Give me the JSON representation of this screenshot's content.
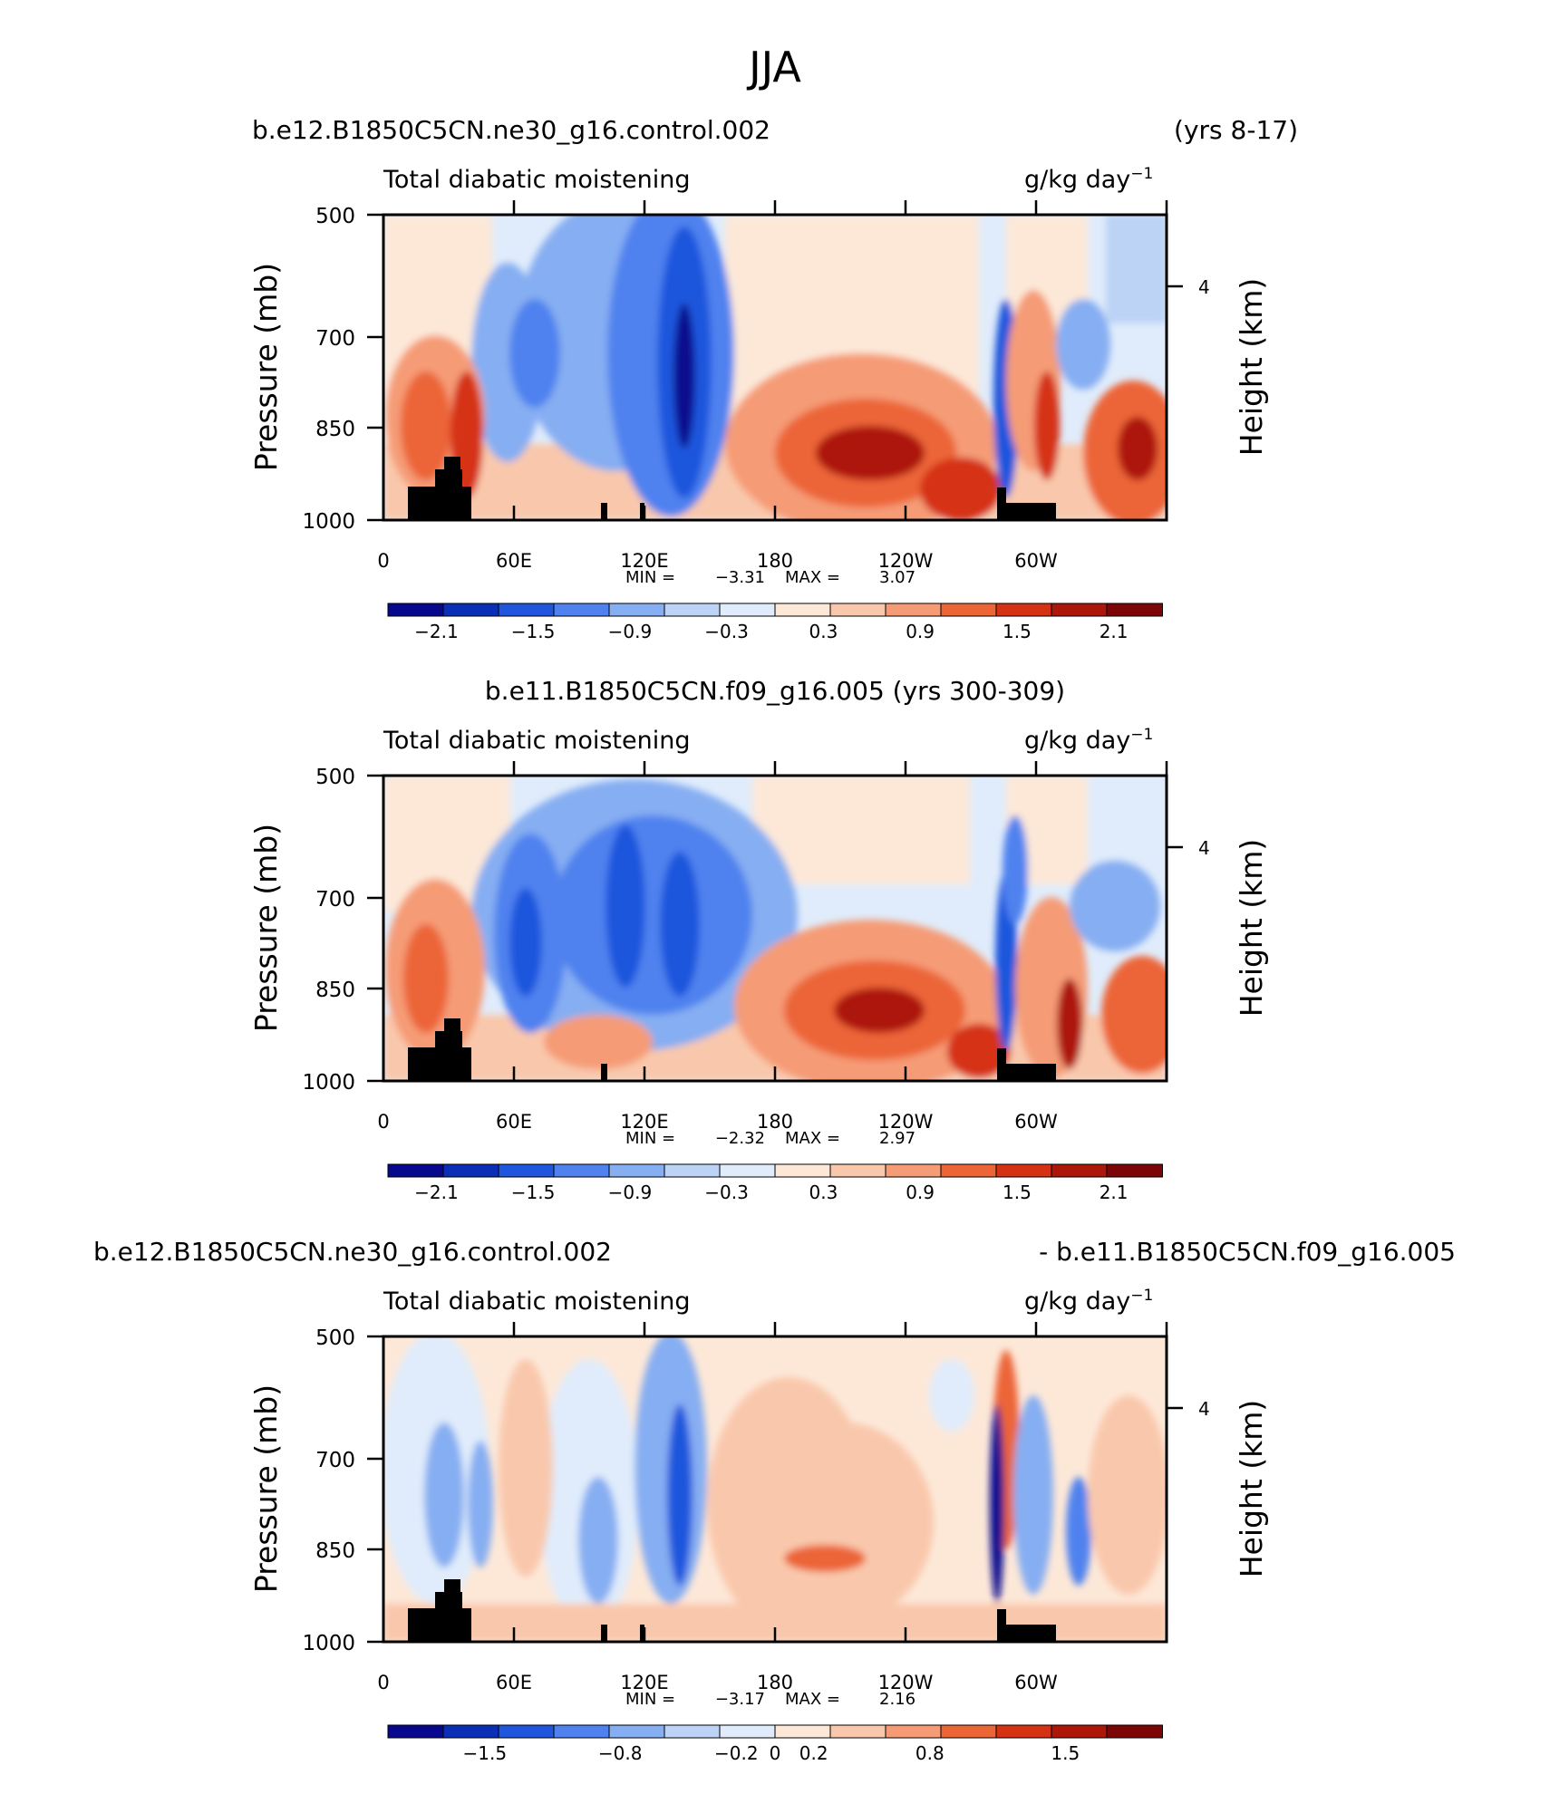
{
  "season": "JJA",
  "chart_data": [
    {
      "type": "heatmap",
      "case_title": "b.e12.B1850C5CN.ne30_g16.control.002",
      "years": "(yrs 8-17)",
      "variable": "Total diabatic moistening",
      "units_base": "g/kg day",
      "units_exp": "−1",
      "ylabel": "Pressure (mb)",
      "ylabel_right": "Height (km)",
      "y_ticks": [
        "500",
        "700",
        "850",
        "1000"
      ],
      "y_ticks_right": [
        "4"
      ],
      "x_ticks": [
        "0",
        "60E",
        "120E",
        "180",
        "120W",
        "60W"
      ],
      "min_label": "MIN =",
      "min_value": "−3.31",
      "max_label": "MAX =",
      "max_value": "3.07",
      "colorbar_labels": [
        "−2.1",
        "−1.5",
        "−0.9",
        "−0.3",
        "0.3",
        "0.9",
        "1.5",
        "2.1"
      ],
      "colorbar_min": -2.4,
      "colorbar_max": 2.4
    },
    {
      "type": "heatmap",
      "case_title": "b.e11.B1850C5CN.f09_g16.005 (yrs 300-309)",
      "variable": "Total diabatic moistening",
      "units_base": "g/kg day",
      "units_exp": "−1",
      "ylabel": "Pressure (mb)",
      "ylabel_right": "Height (km)",
      "y_ticks": [
        "500",
        "700",
        "850",
        "1000"
      ],
      "y_ticks_right": [
        "4"
      ],
      "x_ticks": [
        "0",
        "60E",
        "120E",
        "180",
        "120W",
        "60W"
      ],
      "min_label": "MIN =",
      "min_value": "−2.32",
      "max_label": "MAX =",
      "max_value": "2.97",
      "colorbar_labels": [
        "−2.1",
        "−1.5",
        "−0.9",
        "−0.3",
        "0.3",
        "0.9",
        "1.5",
        "2.1"
      ],
      "colorbar_min": -2.4,
      "colorbar_max": 2.4
    },
    {
      "type": "heatmap",
      "case_title": "b.e12.B1850C5CN.ne30_g16.control.002",
      "diff_title": "- b.e11.B1850C5CN.f09_g16.005",
      "variable": "Total diabatic moistening",
      "units_base": "g/kg day",
      "units_exp": "−1",
      "ylabel": "Pressure (mb)",
      "ylabel_right": "Height (km)",
      "y_ticks": [
        "500",
        "700",
        "850",
        "1000"
      ],
      "y_ticks_right": [
        "4"
      ],
      "x_ticks": [
        "0",
        "60E",
        "120E",
        "180",
        "120W",
        "60W"
      ],
      "min_label": "MIN =",
      "min_value": "−3.17",
      "max_label": "MAX =",
      "max_value": "2.16",
      "colorbar_labels": [
        "−1.5",
        "−0.8",
        "−0.2",
        "0",
        "0.2",
        "0.8",
        "1.5"
      ],
      "colorbar_min": -2.0,
      "colorbar_max": 2.0
    }
  ],
  "colors": {
    "palette": [
      "#08088f",
      "#0a2fb6",
      "#1f56dd",
      "#4f82ef",
      "#86aef2",
      "#bcd3f6",
      "#e0ecfb",
      "#fde8d8",
      "#f9c8ac",
      "#f59b76",
      "#ec6537",
      "#d53214",
      "#ad1709",
      "#7c0606"
    ],
    "terrain": "#000000"
  }
}
